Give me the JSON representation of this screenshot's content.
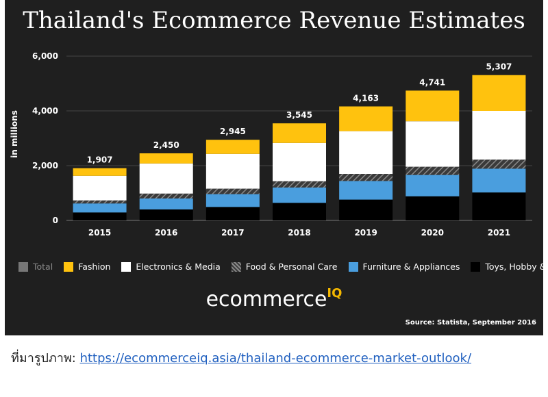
{
  "title": "Thailand's Ecommerce Revenue Estimates",
  "logo": {
    "text": "ecommerce",
    "superscript": "IQ"
  },
  "source": "Source: Statista, September 2016",
  "caption": {
    "prefix": "ที่มารูปภาพ:",
    "link_text": "https://ecommerceiq.asia/thailand-ecommerce-market-outlook/"
  },
  "colors": {
    "background": "#1f1f1f",
    "total": "#777777",
    "fashion": "#ffc20e",
    "electronics": "#ffffff",
    "food": "#555555",
    "furniture": "#4a9ede",
    "toys": "#000000"
  },
  "chart_data": {
    "type": "bar",
    "stacked": true,
    "title": "Thailand's Ecommerce Revenue Estimates",
    "xlabel": "",
    "ylabel": "in millions",
    "ylim": [
      0,
      6000
    ],
    "yticks": [
      0,
      2000,
      4000,
      6000
    ],
    "ytick_labels": [
      "0",
      "2,000",
      "4,000",
      "6,000"
    ],
    "grid": true,
    "legend_position": "bottom",
    "categories": [
      "2015",
      "2016",
      "2017",
      "2018",
      "2019",
      "2020",
      "2021"
    ],
    "totals": [
      1907,
      2450,
      2945,
      3545,
      4163,
      4741,
      5307
    ],
    "total_labels": [
      "1,907",
      "2,450",
      "2,945",
      "3,545",
      "4,163",
      "4,741",
      "5,307"
    ],
    "legend": [
      {
        "name": "Total",
        "color_key": "total",
        "muted": true
      },
      {
        "name": "Fashion",
        "color_key": "fashion"
      },
      {
        "name": "Electronics & Media",
        "color_key": "electronics"
      },
      {
        "name": "Food & Personal Care",
        "color_key": "food",
        "hatched": true
      },
      {
        "name": "Furniture & Appliances",
        "color_key": "furniture"
      },
      {
        "name": "Toys, Hobby & DIY",
        "color_key": "toys"
      }
    ],
    "series": [
      {
        "name": "Toys, Hobby & DIY",
        "color_key": "toys",
        "values": [
          290,
          400,
          490,
          640,
          760,
          880,
          1020
        ]
      },
      {
        "name": "Furniture & Appliances",
        "color_key": "furniture",
        "values": [
          330,
          400,
          470,
          560,
          680,
          780,
          870
        ]
      },
      {
        "name": "Food & Personal Care",
        "color_key": "food",
        "hatched": true,
        "values": [
          110,
          180,
          200,
          230,
          260,
          300,
          330
        ]
      },
      {
        "name": "Electronics & Media",
        "color_key": "electronics",
        "values": [
          900,
          1100,
          1270,
          1400,
          1560,
          1660,
          1780
        ]
      },
      {
        "name": "Fashion",
        "color_key": "fashion",
        "values": [
          277,
          370,
          515,
          715,
          903,
          1121,
          1307
        ]
      }
    ]
  }
}
